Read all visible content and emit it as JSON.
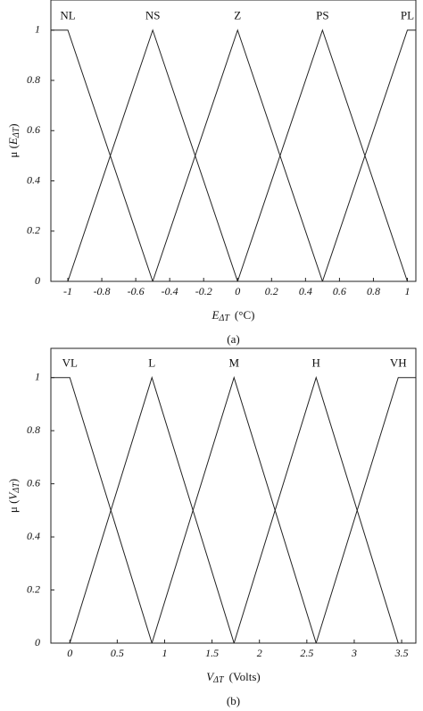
{
  "chart_data": [
    {
      "type": "line",
      "xlabel": {
        "symbol": "E",
        "sub": "ΔT",
        "unit": "(°C)"
      },
      "ylabel": {
        "prefix": "μ (",
        "symbol": "E",
        "sub": "ΔT",
        "suffix": ")"
      },
      "caption": "(a)",
      "xlim": [
        -1.1,
        1.05
      ],
      "ylim": [
        0,
        1.12
      ],
      "xticks": [
        -1,
        -0.8,
        -0.6,
        -0.4,
        -0.2,
        0,
        0.2,
        0.4,
        0.6,
        0.8,
        1
      ],
      "yticks": [
        0,
        0.2,
        0.4,
        0.6,
        0.8,
        1
      ],
      "series": [
        {
          "name": "NL",
          "color": "#222",
          "x": [
            -1.1,
            -1,
            -0.5
          ],
          "values": [
            1,
            1,
            0
          ]
        },
        {
          "name": "NS",
          "color": "#222",
          "x": [
            -1,
            -0.5,
            0
          ],
          "values": [
            0,
            1,
            0
          ]
        },
        {
          "name": "Z",
          "color": "#222",
          "x": [
            -0.5,
            0,
            0.5
          ],
          "values": [
            0,
            1,
            0
          ]
        },
        {
          "name": "PS",
          "color": "#222",
          "x": [
            0,
            0.5,
            1
          ],
          "values": [
            0,
            1,
            0
          ]
        },
        {
          "name": "PL",
          "color": "#222",
          "x": [
            0.5,
            1,
            1.05
          ],
          "values": [
            0,
            1,
            1
          ]
        }
      ]
    },
    {
      "type": "line",
      "xlabel": {
        "symbol": "V",
        "sub": "ΔT",
        "unit": "(Volts)"
      },
      "ylabel": {
        "prefix": "μ (",
        "symbol": "V",
        "sub": "ΔT",
        "suffix": ")"
      },
      "caption": "(b)",
      "xlim": [
        -0.2,
        3.65
      ],
      "ylim": [
        0,
        1.11
      ],
      "xticks": [
        0,
        0.5,
        1,
        1.5,
        2,
        2.5,
        3,
        3.5
      ],
      "yticks": [
        0,
        0.2,
        0.4,
        0.6,
        0.8,
        1
      ],
      "series": [
        {
          "name": "VL",
          "color": "#222",
          "x": [
            -0.2,
            0,
            0.866
          ],
          "values": [
            1,
            1,
            0
          ]
        },
        {
          "name": "L",
          "color": "#222",
          "x": [
            0,
            0.866,
            1.732
          ],
          "values": [
            0,
            1,
            0
          ]
        },
        {
          "name": "M",
          "color": "#222",
          "x": [
            0.866,
            1.732,
            2.598
          ],
          "values": [
            0,
            1,
            0
          ]
        },
        {
          "name": "H",
          "color": "#222",
          "x": [
            1.732,
            2.598,
            3.464
          ],
          "values": [
            0,
            1,
            0
          ]
        },
        {
          "name": "VH",
          "color": "#222",
          "x": [
            2.598,
            3.464,
            3.65
          ],
          "values": [
            0,
            1,
            1
          ]
        }
      ]
    }
  ]
}
